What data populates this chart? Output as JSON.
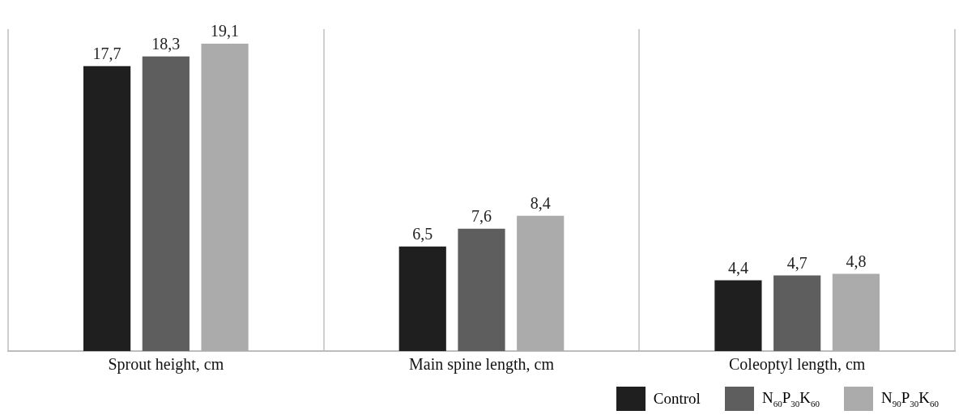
{
  "chart_data": {
    "type": "bar",
    "categories": [
      "Sprout height, cm",
      "Main spine length, cm",
      "Coleoptyl length, cm"
    ],
    "series": [
      {
        "name": "Control",
        "color": "#1f1f1f",
        "values": [
          17.7,
          6.5,
          4.4
        ],
        "value_labels": [
          "17,7",
          "6,5",
          "4,4"
        ]
      },
      {
        "name": "N$_{60}$P$_{30}$K$_{60}$",
        "color": "#5e5e5e",
        "values": [
          18.3,
          7.6,
          4.7
        ],
        "value_labels": [
          "18,3",
          "7,6",
          "4,7"
        ]
      },
      {
        "name": "N$_{90}$P$_{30}$K$_{60}$",
        "color": "#ababab",
        "values": [
          19.1,
          8.4,
          4.8
        ],
        "value_labels": [
          "19,1",
          "8,4",
          "4,8"
        ]
      }
    ],
    "grid": "x",
    "legend": "bottom right"
  }
}
